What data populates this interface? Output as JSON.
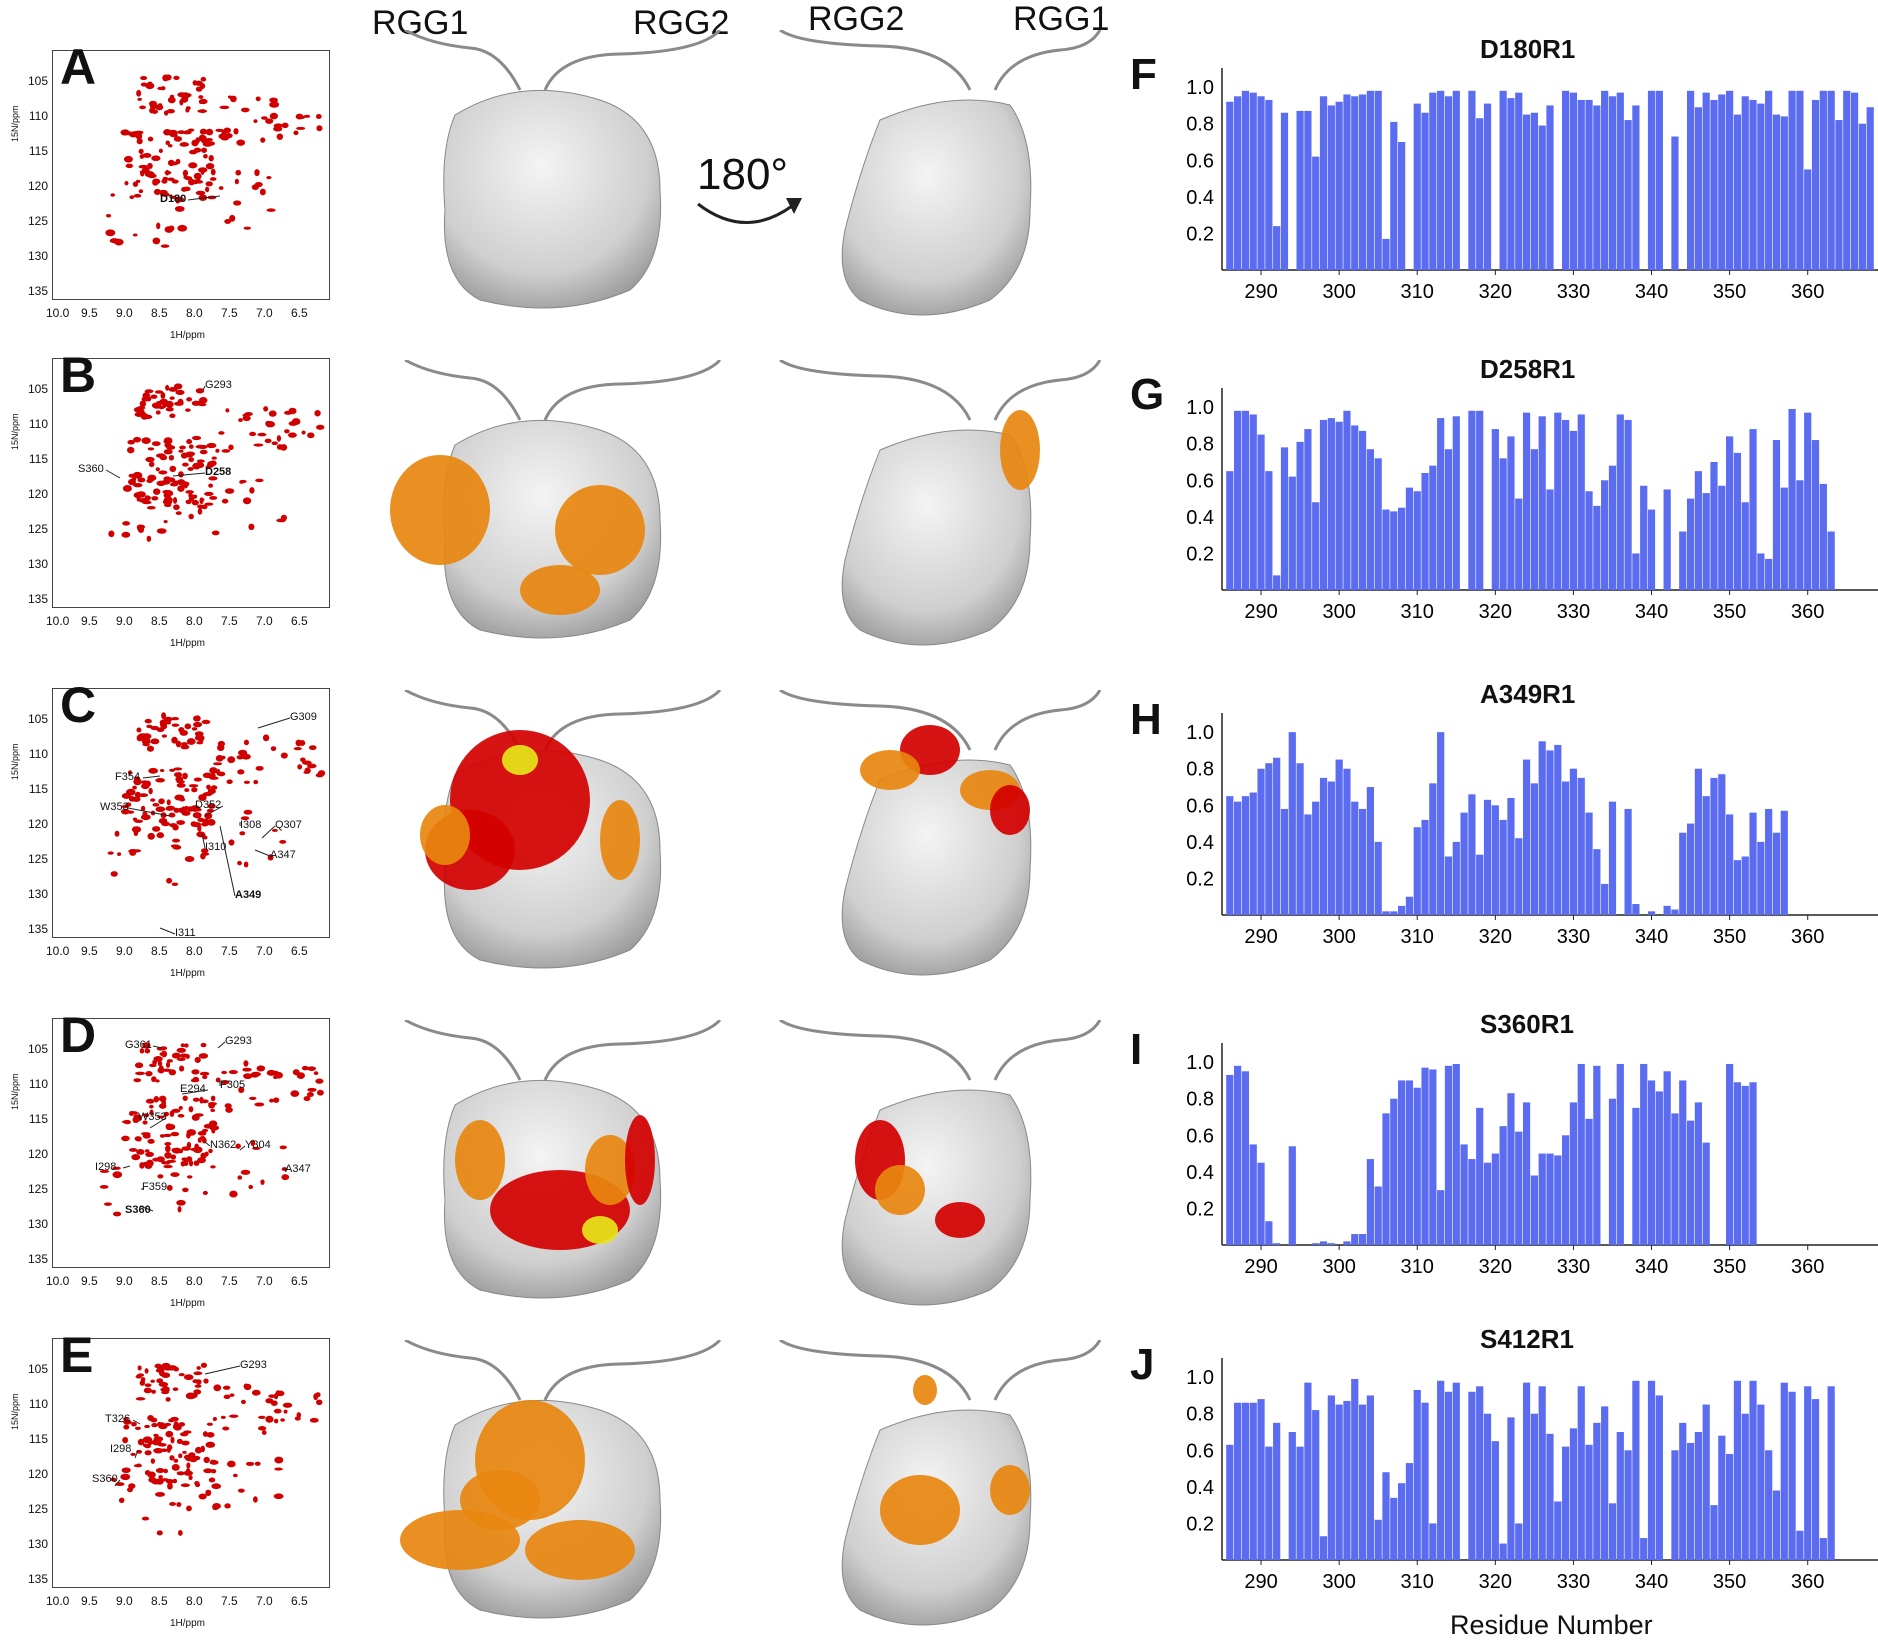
{
  "nmr_axis": {
    "y_ticks": [
      "105",
      "110",
      "115",
      "120",
      "125",
      "130",
      "135"
    ],
    "x_ticks": [
      "10.0",
      "9.5",
      "9.0",
      "8.5",
      "8.0",
      "7.5",
      "7.0",
      "6.5"
    ],
    "ylabel": "15N/ppm",
    "xlabel": "1H/ppm"
  },
  "nmr_panels": [
    {
      "letter": "A",
      "labels": [
        {
          "text": "D180",
          "bold": true
        }
      ]
    },
    {
      "letter": "B",
      "labels": [
        {
          "text": "G293",
          "bold": false
        },
        {
          "text": "S360",
          "bold": false
        },
        {
          "text": "D258",
          "bold": true
        }
      ]
    },
    {
      "letter": "C",
      "labels": [
        {
          "text": "G309",
          "bold": false
        },
        {
          "text": "F354",
          "bold": false
        },
        {
          "text": "W353",
          "bold": false
        },
        {
          "text": "D352",
          "bold": false
        },
        {
          "text": "I308",
          "bold": false
        },
        {
          "text": "Q307",
          "bold": false
        },
        {
          "text": "I310",
          "bold": false
        },
        {
          "text": "A347",
          "bold": false
        },
        {
          "text": "A349",
          "bold": true
        },
        {
          "text": "I311",
          "bold": false
        }
      ]
    },
    {
      "letter": "D",
      "labels": [
        {
          "text": "G361",
          "bold": false
        },
        {
          "text": "G293",
          "bold": false
        },
        {
          "text": "E294",
          "bold": false
        },
        {
          "text": "F305",
          "bold": false
        },
        {
          "text": "W353",
          "bold": false
        },
        {
          "text": "N362",
          "bold": false
        },
        {
          "text": "Y304",
          "bold": false
        },
        {
          "text": "A347",
          "bold": false
        },
        {
          "text": "I298",
          "bold": false
        },
        {
          "text": "F359",
          "bold": false
        },
        {
          "text": "S360",
          "bold": true
        }
      ]
    },
    {
      "letter": "E",
      "labels": [
        {
          "text": "G293",
          "bold": false
        },
        {
          "text": "T326",
          "bold": false
        },
        {
          "text": "I298",
          "bold": false
        },
        {
          "text": "S360",
          "bold": false
        }
      ]
    }
  ],
  "structure_labels": {
    "front_left": "RGG1",
    "front_right": "RGG2",
    "back_left": "RGG2",
    "back_right": "RGG1",
    "rotation": "180°"
  },
  "colors": {
    "bar": "#5b6cf0",
    "peak": "#d10000",
    "surface": "#d7d7d7",
    "orange": "#e8870f",
    "red": "#d40000",
    "yellow": "#e6e61a"
  },
  "x_axis_title": "Residue Number",
  "chart_data": [
    {
      "type": "bar",
      "letter": "F",
      "title": "D180R1",
      "xlim": [
        285,
        369
      ],
      "ylim": [
        0,
        1.05
      ],
      "x_ticks": [
        290,
        300,
        310,
        320,
        330,
        340,
        350,
        360
      ],
      "y_ticks": [
        0.2,
        0.4,
        0.6,
        0.8,
        1.0
      ],
      "residues_start": 286,
      "values": [
        0.92,
        0.95,
        0.98,
        0.97,
        0.95,
        0.93,
        0.24,
        0.86,
        0,
        0.87,
        0.87,
        0.62,
        0.95,
        0.9,
        0.92,
        0.96,
        0.95,
        0.96,
        0.98,
        0.98,
        0.17,
        0.81,
        0.7,
        0,
        0.91,
        0.86,
        0.97,
        0.98,
        0.95,
        0.98,
        0,
        0.98,
        0.83,
        0.91,
        0,
        0.98,
        0.94,
        0.97,
        0.85,
        0.86,
        0.79,
        0.9,
        0,
        0.98,
        0.97,
        0.93,
        0.93,
        0.9,
        0.98,
        0.95,
        0.97,
        0.82,
        0.9,
        0,
        0.98,
        0.98,
        0,
        0.73,
        0,
        0.98,
        0.89,
        0.97,
        0.93,
        0.96,
        0.98,
        0.85,
        0.95,
        0.93,
        0.91,
        0.98,
        0.85,
        0.84,
        0.98,
        0.98,
        0.55,
        0.93,
        0.98,
        0.98,
        0.82,
        0.98,
        0.97,
        0.8,
        0.89
      ]
    },
    {
      "type": "bar",
      "letter": "G",
      "title": "D258R1",
      "xlim": [
        285,
        369
      ],
      "ylim": [
        0,
        1.05
      ],
      "x_ticks": [
        290,
        300,
        310,
        320,
        330,
        340,
        350,
        360
      ],
      "y_ticks": [
        0.2,
        0.4,
        0.6,
        0.8,
        1.0
      ],
      "residues_start": 286,
      "values": [
        0.65,
        0.98,
        0.98,
        0.96,
        0.85,
        0.65,
        0.08,
        0.78,
        0.62,
        0.81,
        0.88,
        0.48,
        0.93,
        0.94,
        0.92,
        0.98,
        0.9,
        0.87,
        0.77,
        0.72,
        0.44,
        0.43,
        0.45,
        0.56,
        0.54,
        0.64,
        0.68,
        0.94,
        0.77,
        0.95,
        0,
        0.98,
        0.98,
        0,
        0.88,
        0.72,
        0.84,
        0.5,
        0.97,
        0.77,
        0.95,
        0.55,
        0.97,
        0.93,
        0.87,
        0.96,
        0.54,
        0.46,
        0.6,
        0.68,
        0.96,
        0.93,
        0.2,
        0.57,
        0.44,
        0,
        0.55,
        0,
        0.32,
        0.5,
        0.65,
        0.53,
        0.7,
        0.57,
        0.84,
        0.75,
        0.48,
        0.88,
        0.2,
        0.17,
        0.82,
        0.56,
        0.99,
        0.6,
        0.97,
        0.82,
        0.58,
        0.32
      ]
    },
    {
      "type": "bar",
      "letter": "H",
      "title": "A349R1",
      "xlim": [
        285,
        369
      ],
      "ylim": [
        0,
        1.05
      ],
      "x_ticks": [
        290,
        300,
        310,
        320,
        330,
        340,
        350,
        360
      ],
      "y_ticks": [
        0.2,
        0.4,
        0.6,
        0.8,
        1.0
      ],
      "residues_start": 286,
      "values": [
        0.65,
        0.62,
        0.65,
        0.67,
        0.8,
        0.83,
        0.86,
        0.58,
        1.0,
        0.83,
        0.55,
        0.62,
        0.75,
        0.73,
        0.85,
        0.8,
        0.62,
        0.58,
        0.7,
        0.4,
        0.02,
        0.02,
        0.05,
        0.1,
        0.48,
        0.52,
        0.72,
        1.0,
        0.32,
        0.4,
        0.56,
        0.66,
        0.33,
        0.63,
        0.6,
        0.52,
        0.64,
        0.42,
        0.85,
        0.72,
        0.95,
        0.9,
        0.93,
        0.73,
        0.8,
        0.75,
        0.56,
        0.36,
        0.17,
        0.62,
        0,
        0.58,
        0.06,
        0,
        0.02,
        0,
        0.05,
        0.03,
        0.45,
        0.5,
        0.8,
        0.65,
        0.75,
        0.77,
        0.55,
        0.3,
        0.32,
        0.56,
        0.4,
        0.58,
        0.45,
        0.57
      ]
    },
    {
      "type": "bar",
      "letter": "I",
      "title": "S360R1",
      "xlim": [
        285,
        369
      ],
      "ylim": [
        0,
        1.05
      ],
      "x_ticks": [
        290,
        300,
        310,
        320,
        330,
        340,
        350,
        360
      ],
      "y_ticks": [
        0.2,
        0.4,
        0.6,
        0.8,
        1.0
      ],
      "residues_start": 286,
      "values": [
        0.93,
        0.98,
        0.95,
        0.55,
        0.45,
        0.13,
        0.01,
        0,
        0.54,
        0,
        0,
        0.01,
        0.02,
        0.01,
        0,
        0.02,
        0.06,
        0.06,
        0.47,
        0.32,
        0.72,
        0.8,
        0.9,
        0.9,
        0.86,
        0.97,
        0.96,
        0.3,
        0.98,
        0.99,
        0.55,
        0.47,
        0.75,
        0.45,
        0.5,
        0.65,
        0.83,
        0.62,
        0.78,
        0.38,
        0.5,
        0.5,
        0.49,
        0.6,
        0.78,
        0.99,
        0.69,
        0.98,
        0,
        0.8,
        0.99,
        0,
        0.75,
        0.99,
        0.9,
        0.84,
        0.95,
        0.72,
        0.9,
        0.68,
        0.78,
        0.56,
        0,
        0,
        0.99,
        0.89,
        0.87,
        0.89
      ]
    },
    {
      "type": "bar",
      "letter": "J",
      "title": "S412R1",
      "xlim": [
        285,
        369
      ],
      "ylim": [
        0,
        1.05
      ],
      "x_ticks": [
        290,
        300,
        310,
        320,
        330,
        340,
        350,
        360
      ],
      "y_ticks": [
        0.2,
        0.4,
        0.6,
        0.8,
        1.0
      ],
      "residues_start": 286,
      "values": [
        0.63,
        0.86,
        0.86,
        0.86,
        0.88,
        0.62,
        0.75,
        0,
        0.7,
        0.62,
        0.97,
        0.82,
        0.13,
        0.9,
        0.85,
        0.87,
        0.99,
        0.85,
        0.9,
        0.22,
        0.48,
        0.34,
        0.42,
        0.53,
        0.93,
        0.86,
        0.2,
        0.98,
        0.92,
        0.97,
        0,
        0.92,
        0.95,
        0.8,
        0.65,
        0.09,
        0.78,
        0.2,
        0.97,
        0.8,
        0.95,
        0.69,
        0.32,
        0.62,
        0.72,
        0.95,
        0.63,
        0.75,
        0.84,
        0.31,
        0.7,
        0.6,
        0.98,
        0.12,
        0.98,
        0.9,
        0,
        0.6,
        0.75,
        0.64,
        0.7,
        0.85,
        0.3,
        0.68,
        0.58,
        0.98,
        0.8,
        0.98,
        0.85,
        0.6,
        0.38,
        0.97,
        0.92,
        0.16,
        0.95,
        0.88,
        0.12,
        0.95
      ]
    }
  ]
}
